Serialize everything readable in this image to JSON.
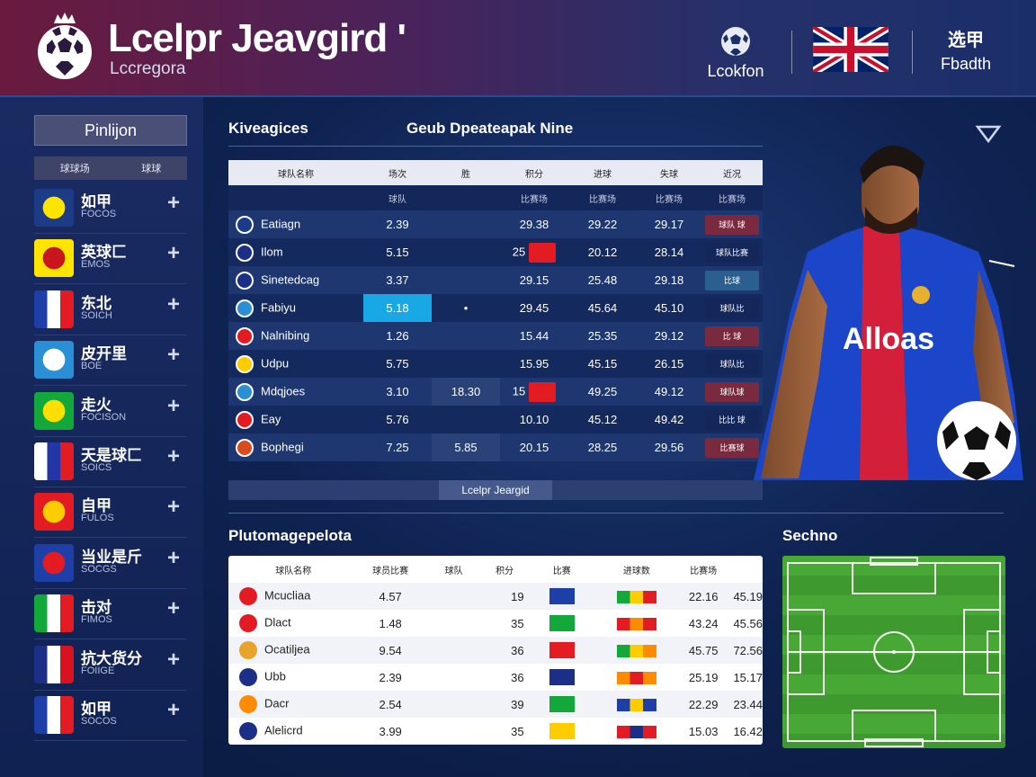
{
  "header": {
    "title": "Lcelpr Jeavgird '",
    "subtitle": "Lccregora",
    "buttons": [
      {
        "label": "Lcokfon",
        "icon": "ball-icon"
      },
      {
        "label": "",
        "icon": "uk-flag-icon"
      },
      {
        "top": "选甲",
        "label": "Fbadth",
        "icon": "language-icon"
      }
    ]
  },
  "sidebar": {
    "position_button": "Pinlijon",
    "head": [
      "球球场",
      "球球"
    ],
    "teams": [
      {
        "name": "如甲",
        "code": "FOCOS",
        "flag": [
          "#1c3c88",
          "#ffe400"
        ]
      },
      {
        "name": "英球匚",
        "code": "EMOS",
        "flag": [
          "#ffe400",
          "#c9151e"
        ]
      },
      {
        "name": "东北",
        "code": "SOICH",
        "flag": [
          "#1e3ea8",
          "#ffffff",
          "#e31c23"
        ]
      },
      {
        "name": "皮开里",
        "code": "BOE",
        "flag": [
          "#2b8fd6",
          "#ffffff"
        ]
      },
      {
        "name": "走火",
        "code": "FOCISON",
        "flag": [
          "#12a83a",
          "#ffde00"
        ]
      },
      {
        "name": "天是球匚",
        "code": "SOICS",
        "flag": [
          "#ffffff",
          "#2336a8",
          "#e31c23"
        ]
      },
      {
        "name": "自甲",
        "code": "FULOS",
        "flag": [
          "#e31c23",
          "#ffcc00"
        ]
      },
      {
        "name": "当业是斤",
        "code": "SOCGS",
        "flag": [
          "#1e3ea8",
          "#e31c23"
        ]
      },
      {
        "name": "击对",
        "code": "FIMOS",
        "flag": [
          "#12a83a",
          "#ffffff",
          "#e31c23"
        ]
      },
      {
        "name": "抗大货分",
        "code": "FOIIGE",
        "flag": [
          "#1b2f86",
          "#ffffff",
          "#d9121f"
        ]
      },
      {
        "name": "如甲",
        "code": "SOCOS",
        "flag": [
          "#1e3ea8",
          "#ffffff",
          "#e31c23"
        ]
      }
    ]
  },
  "standings": {
    "tab_left": "Kiveagices",
    "tab_right": "Geub Dpeateapak Nine",
    "columns": [
      "球队名称",
      "场次",
      "胜",
      "积分",
      "进球",
      "失球",
      "近况"
    ],
    "subcolumns": [
      "",
      "球队",
      "",
      "比赛场",
      "比赛场",
      "比赛场",
      "比赛场"
    ],
    "rows": [
      {
        "club": "Eatiagn",
        "c1": "2.39",
        "c2": "",
        "c3": "29.38",
        "c4": "29.22",
        "c5": "29.17",
        "form": "球队 球",
        "crest": "#1a3b8a",
        "formcolor": "#7a2a3e"
      },
      {
        "club": "Ilom",
        "c1": "5.15",
        "c2": "",
        "c3": "25",
        "c4": "20.12",
        "c5": "28.14",
        "form": "球队比赛",
        "crest": "#1b2f86",
        "formcolor": "#13275a",
        "mini": "#e31c23"
      },
      {
        "club": "Sinetedcag",
        "c1": "3.37",
        "c2": "",
        "c3": "29.15",
        "c4": "25.48",
        "c5": "29.18",
        "form": "比球",
        "crest": "#1b2f86",
        "formcolor": "#2a5f8f"
      },
      {
        "club": "Fabiyu",
        "c1": "5.18",
        "c2": "•",
        "c3": "29.45",
        "c4": "45.64",
        "c5": "45.10",
        "form": "球队比",
        "crest": "#2b8fd6",
        "formcolor": "#13275a",
        "highlight": "true"
      },
      {
        "club": "Nalnibing",
        "c1": "1.26",
        "c2": "",
        "c3": "15.44",
        "c4": "25.35",
        "c5": "29.12",
        "form": "比 球",
        "crest": "#e31c23",
        "formcolor": "#7a2a3e"
      },
      {
        "club": "Udpu",
        "c1": "5.75",
        "c2": "",
        "c3": "15.95",
        "c4": "45.15",
        "c5": "26.15",
        "form": "球队比",
        "crest": "#ffcc00",
        "formcolor": "#13275a"
      },
      {
        "club": "Mdqjoes",
        "c1": "3.10",
        "c2": "18.30",
        "c3": "15",
        "c4": "49.25",
        "c5": "49.12",
        "form": "球队球",
        "crest": "#2b8fd6",
        "formcolor": "#7a2a3e",
        "mini": "#e31c23"
      },
      {
        "club": "Eay",
        "c1": "5.76",
        "c2": "",
        "c3": "10.10",
        "c4": "45.12",
        "c5": "49.42",
        "form": "比比 球",
        "crest": "#e31c23",
        "formcolor": "#13275a"
      },
      {
        "club": "Bophegi",
        "c1": "7.25",
        "c2": "5.85",
        "c3": "20.15",
        "c4": "28.25",
        "c5": "29.56",
        "form": "比赛球",
        "crest": "#d94a1e",
        "formcolor": "#7a2a3e"
      }
    ],
    "league_button": "Lcelpr Jeargid"
  },
  "stats": {
    "title": "Plutomagepelota",
    "columns": [
      "球队名称",
      "球员比赛",
      "球队",
      "积分",
      "比赛",
      "进球数",
      "比赛场"
    ],
    "rows": [
      {
        "club": "Mcucliaa",
        "c1": "4.57",
        "c3": "19",
        "c5": "22.16",
        "c6": "45.19",
        "crest": "#e31c23",
        "tri": "#1e3ea8",
        "bar": [
          "#12a83a",
          "#ffcc00",
          "#e31c23"
        ]
      },
      {
        "club": "Dlact",
        "c1": "1.48",
        "c3": "35",
        "c5": "43.24",
        "c6": "45.56",
        "crest": "#e31c23",
        "tri": "#12a83a",
        "bar": [
          "#e31c23",
          "#ff8c00",
          "#e31c23"
        ]
      },
      {
        "club": "Ocatiljea",
        "c1": "9.54",
        "c3": "36",
        "c5": "45.75",
        "c6": "72.56",
        "crest": "#e8a32a",
        "tri": "#e31c23",
        "bar": [
          "#12a83a",
          "#ffcc00",
          "#ff8c00"
        ]
      },
      {
        "club": "Ubb",
        "c1": "2.39",
        "c3": "36",
        "c5": "25.19",
        "c6": "15.17",
        "crest": "#1b2f86",
        "tri": "#1b2f86",
        "bar": [
          "#ff8c00",
          "#e31c23",
          "#ff8c00"
        ]
      },
      {
        "club": "Dacr",
        "c1": "2.54",
        "c3": "39",
        "c5": "22.29",
        "c6": "23.44",
        "crest": "#ff8c00",
        "tri": "#12a83a",
        "bar": [
          "#1e3ea8",
          "#ffcc00",
          "#1e3ea8"
        ]
      },
      {
        "club": "Alelicrd",
        "c1": "3.99",
        "c3": "35",
        "c5": "15.03",
        "c6": "16.42",
        "crest": "#1b2f86",
        "tri": "#ffcc00",
        "bar": [
          "#e31c23",
          "#1b2f86",
          "#e31c23"
        ]
      }
    ]
  },
  "pitch": {
    "title": "Sechno"
  },
  "player": {
    "shirt_text": "Alloas"
  }
}
